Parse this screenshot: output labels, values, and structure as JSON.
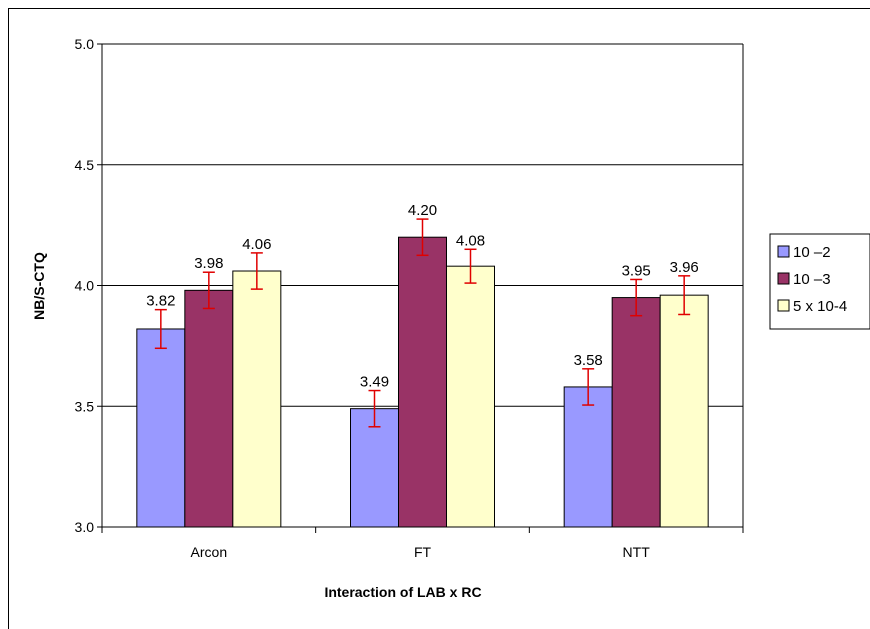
{
  "chart_data": {
    "type": "bar",
    "title": "",
    "xlabel": "Interaction of LAB x RC",
    "ylabel": "NB/S-CTQ",
    "ylim": [
      3.0,
      5.0
    ],
    "yticks": [
      "3.0",
      "3.5",
      "4.0",
      "4.5",
      "5.0"
    ],
    "categories": [
      "Arcon",
      "FT",
      "NTT"
    ],
    "grid": true,
    "legend_position": "right",
    "series": [
      {
        "name": "10 –2",
        "color": "#9999ff",
        "values": [
          3.82,
          3.49,
          3.58
        ],
        "labels": [
          "3.82",
          "3.49",
          "3.58"
        ],
        "errors": [
          0.08,
          0.075,
          0.075
        ]
      },
      {
        "name": "10 –3",
        "color": "#993366",
        "values": [
          3.98,
          4.2,
          3.95
        ],
        "labels": [
          "3.98",
          "4.20",
          "3.95"
        ],
        "errors": [
          0.075,
          0.075,
          0.075
        ]
      },
      {
        "name": "5 x 10-4",
        "color": "#ffffcc",
        "values": [
          4.06,
          4.08,
          3.96
        ],
        "labels": [
          "4.06",
          "4.08",
          "3.96"
        ],
        "errors": [
          0.075,
          0.07,
          0.08
        ]
      }
    ]
  }
}
